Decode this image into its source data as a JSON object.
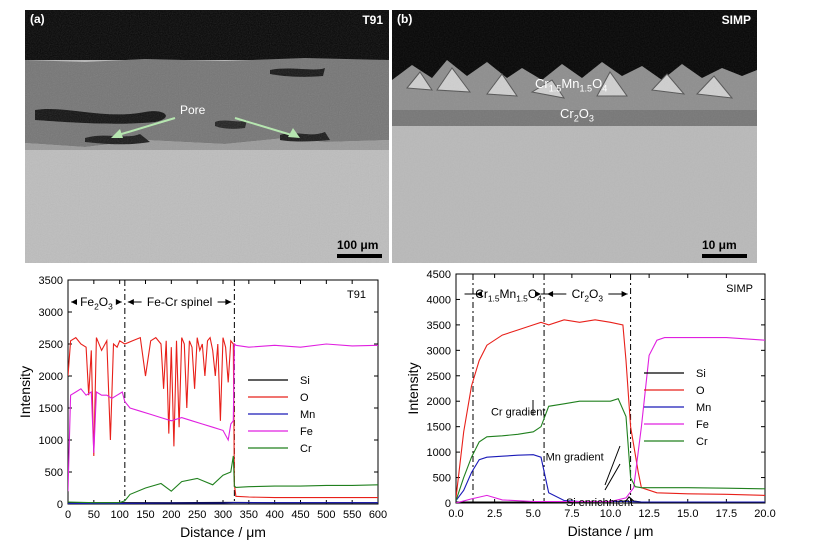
{
  "micrographs": [
    {
      "panel": "(a)",
      "name": "T91",
      "pore_label": "Pore",
      "scale_bar": "100 μm"
    },
    {
      "panel": "(b)",
      "name": "SIMP",
      "layer_outer": "Cr1.5Mn1.5O4",
      "layer_inner": "Cr2O3",
      "scale_bar": "10 μm"
    }
  ],
  "colors": {
    "Si": "#000000",
    "O": "#e8201a",
    "Mn": "#1a1ab8",
    "Fe": "#e020e0",
    "Cr": "#20801e"
  },
  "chart_data": [
    {
      "type": "line",
      "corner_label": "T91",
      "xlabel": "Distance / μm",
      "ylabel": "Intensity",
      "xlim": [
        0,
        600
      ],
      "ylim": [
        0,
        3500
      ],
      "xticks": [
        0,
        50,
        100,
        150,
        200,
        250,
        300,
        350,
        400,
        450,
        500,
        550,
        600
      ],
      "yticks": [
        0,
        500,
        1000,
        1500,
        2000,
        2500,
        3000,
        3500
      ],
      "legend_position": "right",
      "region_boundaries": [
        110,
        322
      ],
      "regions": [
        {
          "label": "Fe2O3",
          "from": 0,
          "to": 110
        },
        {
          "label": "Fe-Cr spinel",
          "from": 110,
          "to": 322
        }
      ],
      "series": [
        {
          "name": "Si",
          "color": "#000000",
          "x": [
            0,
            100,
            200,
            300,
            320,
            400,
            500,
            600
          ],
          "y": [
            20,
            20,
            20,
            25,
            25,
            20,
            20,
            20
          ]
        },
        {
          "name": "O",
          "color": "#e8201a",
          "x": [
            0,
            5,
            15,
            25,
            35,
            40,
            45,
            50,
            55,
            65,
            75,
            82,
            88,
            95,
            100,
            110,
            125,
            140,
            150,
            160,
            170,
            180,
            185,
            190,
            195,
            200,
            205,
            210,
            215,
            220,
            225,
            230,
            235,
            240,
            245,
            250,
            255,
            260,
            265,
            270,
            275,
            280,
            285,
            290,
            295,
            300,
            305,
            310,
            315,
            320,
            322,
            325,
            350,
            400,
            450,
            500,
            550,
            600
          ],
          "y": [
            2000,
            2550,
            2600,
            2500,
            2450,
            1700,
            2400,
            750,
            2600,
            2400,
            2550,
            1000,
            2500,
            2450,
            2550,
            2500,
            2550,
            2600,
            2000,
            2550,
            2600,
            2500,
            1800,
            2550,
            1100,
            2450,
            900,
            2550,
            1200,
            2600,
            2500,
            1500,
            2550,
            2450,
            1800,
            2600,
            2400,
            2500,
            2000,
            2550,
            2600,
            2400,
            2000,
            2500,
            1300,
            2600,
            2450,
            1900,
            2550,
            2500,
            300,
            120,
            110,
            100,
            100,
            100,
            100,
            100
          ]
        },
        {
          "name": "Mn",
          "color": "#1a1ab8",
          "x": [
            0,
            100,
            200,
            300,
            320,
            400,
            500,
            600
          ],
          "y": [
            10,
            10,
            15,
            15,
            20,
            20,
            20,
            20
          ]
        },
        {
          "name": "Fe",
          "color": "#e020e0",
          "x": [
            0,
            5,
            15,
            25,
            35,
            45,
            50,
            55,
            65,
            75,
            85,
            95,
            105,
            110,
            120,
            140,
            160,
            180,
            200,
            220,
            240,
            260,
            280,
            300,
            310,
            315,
            320,
            322,
            325,
            350,
            400,
            450,
            500,
            550,
            600
          ],
          "y": [
            200,
            1700,
            1750,
            1800,
            1700,
            1750,
            800,
            1750,
            1700,
            1700,
            1650,
            1700,
            1750,
            1600,
            1500,
            1450,
            1400,
            1350,
            1300,
            1350,
            1300,
            1250,
            1200,
            1150,
            1000,
            1250,
            1300,
            2500,
            2480,
            2450,
            2480,
            2450,
            2500,
            2470,
            2480
          ]
        },
        {
          "name": "Cr",
          "color": "#20801e",
          "x": [
            0,
            50,
            100,
            110,
            120,
            150,
            180,
            200,
            220,
            250,
            280,
            300,
            315,
            320,
            322,
            325,
            350,
            400,
            450,
            500,
            550,
            600
          ],
          "y": [
            30,
            20,
            20,
            50,
            150,
            250,
            320,
            200,
            350,
            400,
            300,
            450,
            500,
            750,
            280,
            260,
            270,
            280,
            280,
            290,
            290,
            300
          ]
        }
      ]
    },
    {
      "type": "line",
      "corner_label": "SIMP",
      "xlabel": "Distance / μm",
      "ylabel": "Intensity",
      "xlim": [
        0,
        20
      ],
      "ylim": [
        0,
        4500
      ],
      "xticks": [
        0.0,
        2.5,
        5.0,
        7.5,
        10.0,
        12.5,
        15.0,
        17.5,
        20.0
      ],
      "xtick_labels": [
        "0.0",
        "2.5",
        "5.0",
        "7.5",
        "10.0",
        "12.5",
        "15.0",
        "17.5",
        "20.0"
      ],
      "yticks": [
        0,
        500,
        1000,
        1500,
        2000,
        2500,
        3000,
        3500,
        4000,
        4500
      ],
      "legend_position": "right",
      "region_boundaries": [
        1.1,
        5.7,
        11.3
      ],
      "regions": [
        {
          "label": "Cr1.5Mn1.5O4",
          "from": 1.1,
          "to": 5.7
        },
        {
          "label": "Cr2O3",
          "from": 5.7,
          "to": 11.3
        }
      ],
      "annotations": [
        {
          "text": "Cr gradient",
          "x": 5.5,
          "y": 1480
        },
        {
          "text": "Mn gradient",
          "x": 5.8,
          "y": 680
        },
        {
          "text": "Si enrichment",
          "x": 11.0,
          "y": 60
        }
      ],
      "series": [
        {
          "name": "Si",
          "color": "#000000",
          "x": [
            0,
            5,
            10,
            11,
            11.2,
            11.5,
            12,
            15,
            20
          ],
          "y": [
            20,
            20,
            25,
            40,
            120,
            40,
            20,
            20,
            20
          ]
        },
        {
          "name": "O",
          "color": "#e8201a",
          "x": [
            0,
            0.5,
            1,
            1.5,
            2,
            3,
            4,
            5,
            5.5,
            6,
            7,
            8,
            9,
            10,
            10.8,
            11,
            11.3,
            11.8,
            12,
            13,
            15,
            17.5,
            20
          ],
          "y": [
            100,
            1400,
            2300,
            2800,
            3100,
            3300,
            3400,
            3500,
            3550,
            3500,
            3600,
            3550,
            3600,
            3550,
            3500,
            2800,
            1500,
            600,
            300,
            200,
            180,
            170,
            150
          ]
        },
        {
          "name": "Mn",
          "color": "#1a1ab8",
          "x": [
            0,
            0.5,
            1,
            1.5,
            2,
            3,
            4,
            5,
            5.5,
            6,
            7,
            8,
            9,
            10,
            11,
            12,
            15,
            20
          ],
          "y": [
            50,
            250,
            600,
            850,
            900,
            920,
            940,
            950,
            900,
            200,
            50,
            30,
            30,
            30,
            30,
            20,
            20,
            20
          ]
        },
        {
          "name": "Fe",
          "color": "#e020e0",
          "x": [
            0,
            1,
            2,
            3,
            5,
            7,
            9,
            10,
            11,
            11.5,
            12,
            12.5,
            13,
            13.5,
            14,
            15,
            17.5,
            20
          ],
          "y": [
            0,
            80,
            150,
            60,
            30,
            30,
            30,
            30,
            100,
            300,
            1500,
            2900,
            3200,
            3250,
            3250,
            3250,
            3250,
            3200
          ]
        },
        {
          "name": "Cr",
          "color": "#20801e",
          "x": [
            0,
            0.5,
            1,
            1.5,
            2,
            3,
            4,
            5,
            5.5,
            6,
            7,
            8,
            9,
            10,
            10.5,
            11,
            11.3,
            11.6,
            12,
            15,
            17.5,
            20
          ],
          "y": [
            50,
            500,
            900,
            1200,
            1300,
            1320,
            1350,
            1400,
            1500,
            1900,
            1950,
            2000,
            2000,
            2000,
            2050,
            1700,
            500,
            320,
            300,
            300,
            290,
            280
          ]
        }
      ]
    }
  ]
}
